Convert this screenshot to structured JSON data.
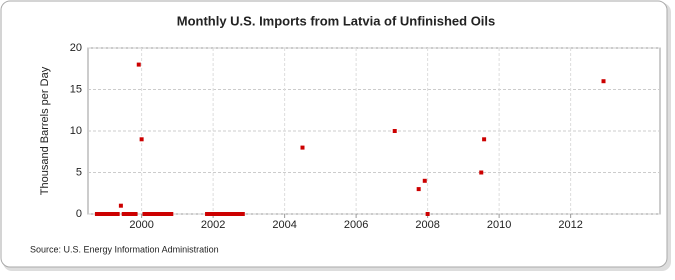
{
  "chart_data": {
    "type": "scatter",
    "title": "Monthly U.S. Imports from Latvia of Unfinished Oils",
    "y_label": "Thousand Barrels per Day",
    "source": "Source: U.S. Energy Information Administration",
    "series": [
      {
        "name": "Imports",
        "color": "#cc0000",
        "x": [
          1998.75,
          1998.83,
          1998.92,
          1999.0,
          1999.08,
          1999.17,
          1999.25,
          1999.33,
          1999.42,
          1999.5,
          1999.58,
          1999.67,
          1999.75,
          1999.83,
          1999.92,
          2000.0,
          2000.08,
          2000.17,
          2000.25,
          2000.33,
          2000.42,
          2000.5,
          2000.58,
          2000.67,
          2000.75,
          2000.83,
          2001.83,
          2001.92,
          2002.0,
          2002.08,
          2002.17,
          2002.25,
          2002.33,
          2002.42,
          2002.5,
          2002.58,
          2002.67,
          2002.75,
          2002.83,
          2004.5,
          2007.08,
          2007.75,
          2007.92,
          2008.0,
          2009.5,
          2009.58,
          2012.92
        ],
        "values": [
          0,
          0,
          0,
          0,
          0,
          0,
          0,
          0,
          1,
          0,
          0,
          0,
          0,
          0,
          18,
          9,
          0,
          0,
          0,
          0,
          0,
          0,
          0,
          0,
          0,
          0,
          0,
          0,
          0,
          0,
          0,
          0,
          0,
          0,
          0,
          0,
          0,
          0,
          0,
          8,
          10,
          3,
          4,
          0,
          5,
          9,
          16
        ]
      }
    ],
    "xlim": [
      1998.5,
      2014.5
    ],
    "xticks": [
      2000,
      2002,
      2004,
      2006,
      2008,
      2010,
      2012
    ],
    "ylim": [
      0,
      20
    ],
    "yticks": [
      0,
      5,
      10,
      15,
      20
    ],
    "grid": true
  }
}
